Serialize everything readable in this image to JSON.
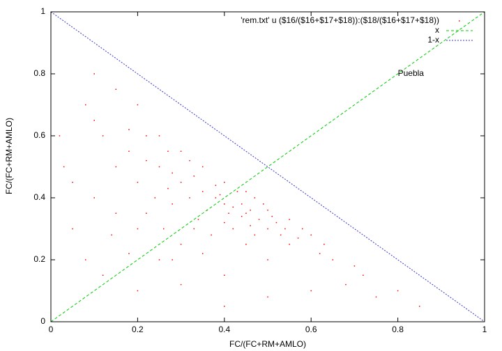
{
  "chart_data": {
    "type": "scatter",
    "xlabel": "FC/(FC+RM+AMLO)",
    "ylabel": "FC/(FC+RM+AMLO)",
    "xlim": [
      0,
      1
    ],
    "ylim": [
      0,
      1
    ],
    "xticks": [
      0,
      0.2,
      0.4,
      0.6,
      0.8,
      1
    ],
    "yticks": [
      0,
      0.2,
      0.4,
      0.6,
      0.8,
      1
    ],
    "annotation": {
      "text": "Puebla",
      "x": 0.8,
      "y": 0.8
    },
    "series": [
      {
        "name": "'rem.txt' u ($16/($16+$17+$18)):($18/($16+$17+$18))",
        "color": "#ff0000",
        "style": "points",
        "x": [
          0.45,
          0.48,
          0.42,
          0.5,
          0.4,
          0.46,
          0.52,
          0.44,
          0.38,
          0.35,
          0.3,
          0.28,
          0.25,
          0.22,
          0.2,
          0.18,
          0.15,
          0.12,
          0.1,
          0.08,
          0.1,
          0.15,
          0.2,
          0.25,
          0.3,
          0.35,
          0.33,
          0.3,
          0.25,
          0.2,
          0.15,
          0.1,
          0.05,
          0.05,
          0.08,
          0.12,
          0.2,
          0.3,
          0.4,
          0.5,
          0.55,
          0.6,
          0.62,
          0.58,
          0.65,
          0.7,
          0.72,
          0.68,
          0.6,
          0.5,
          0.4,
          0.8,
          0.85,
          0.75,
          0.02,
          0.03,
          0.28,
          0.32,
          0.36,
          0.4,
          0.42,
          0.47,
          0.53,
          0.55,
          0.5,
          0.47,
          0.43,
          0.38,
          0.33,
          0.27,
          0.24,
          0.22,
          0.26,
          0.34,
          0.37,
          0.45,
          0.35,
          0.28,
          0.18,
          0.14,
          0.22,
          0.18,
          0.27,
          0.32,
          0.4,
          0.45,
          0.54,
          0.57,
          0.63,
          0.49,
          0.51,
          0.44,
          0.41,
          0.46,
          0.39
        ],
        "values": [
          0.35,
          0.33,
          0.37,
          0.3,
          0.38,
          0.36,
          0.32,
          0.34,
          0.4,
          0.42,
          0.45,
          0.48,
          0.5,
          0.52,
          0.45,
          0.55,
          0.5,
          0.6,
          0.65,
          0.7,
          0.8,
          0.75,
          0.7,
          0.6,
          0.55,
          0.5,
          0.3,
          0.25,
          0.2,
          0.3,
          0.35,
          0.4,
          0.45,
          0.3,
          0.2,
          0.15,
          0.1,
          0.12,
          0.15,
          0.2,
          0.25,
          0.28,
          0.22,
          0.3,
          0.2,
          0.18,
          0.15,
          0.12,
          0.1,
          0.08,
          0.05,
          0.1,
          0.05,
          0.08,
          0.6,
          0.5,
          0.38,
          0.4,
          0.36,
          0.32,
          0.3,
          0.28,
          0.28,
          0.33,
          0.36,
          0.4,
          0.42,
          0.44,
          0.47,
          0.43,
          0.4,
          0.35,
          0.3,
          0.33,
          0.28,
          0.25,
          0.22,
          0.2,
          0.22,
          0.28,
          0.6,
          0.62,
          0.55,
          0.52,
          0.45,
          0.42,
          0.3,
          0.27,
          0.25,
          0.38,
          0.34,
          0.38,
          0.35,
          0.31,
          0.41
        ]
      },
      {
        "name": "x",
        "color": "#00cc00",
        "style": "dashed",
        "x": [
          0,
          1
        ],
        "values": [
          0,
          1
        ]
      },
      {
        "name": "1-x",
        "color": "#3333cc",
        "style": "dotted",
        "x": [
          0,
          1
        ],
        "values": [
          1,
          0
        ]
      }
    ]
  }
}
